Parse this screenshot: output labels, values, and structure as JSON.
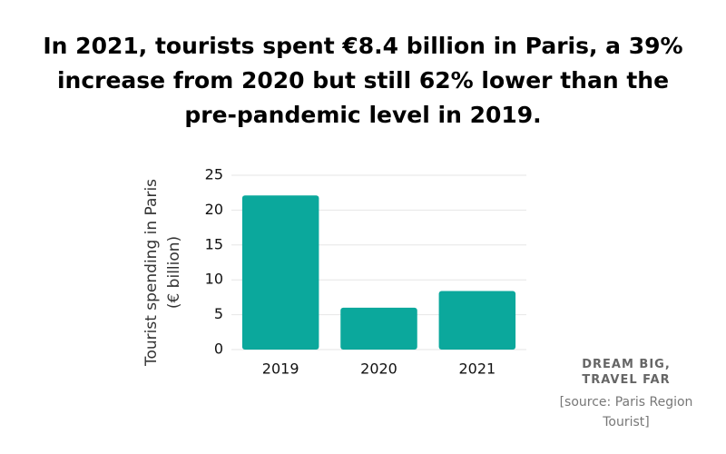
{
  "chart_data": {
    "type": "bar",
    "title": "In 2021, tourists spent €8.4 billion in Paris, a 39% increase from 2020 but still 62% lower than the pre-pandemic level in 2019.",
    "ylabel": [
      "Tourist spending in Paris",
      "(€ billion)"
    ],
    "categories": [
      "2019",
      "2020",
      "2021"
    ],
    "values": [
      22.1,
      6,
      8.4
    ],
    "color": "#0ba89c",
    "ylim": [
      0,
      25
    ],
    "yticks": [
      0,
      5,
      10,
      15,
      20,
      25
    ],
    "grid": true,
    "annotations": [
      "DREAM BIG, TRAVEL FAR",
      "[source: Paris Region Tourist]"
    ]
  }
}
